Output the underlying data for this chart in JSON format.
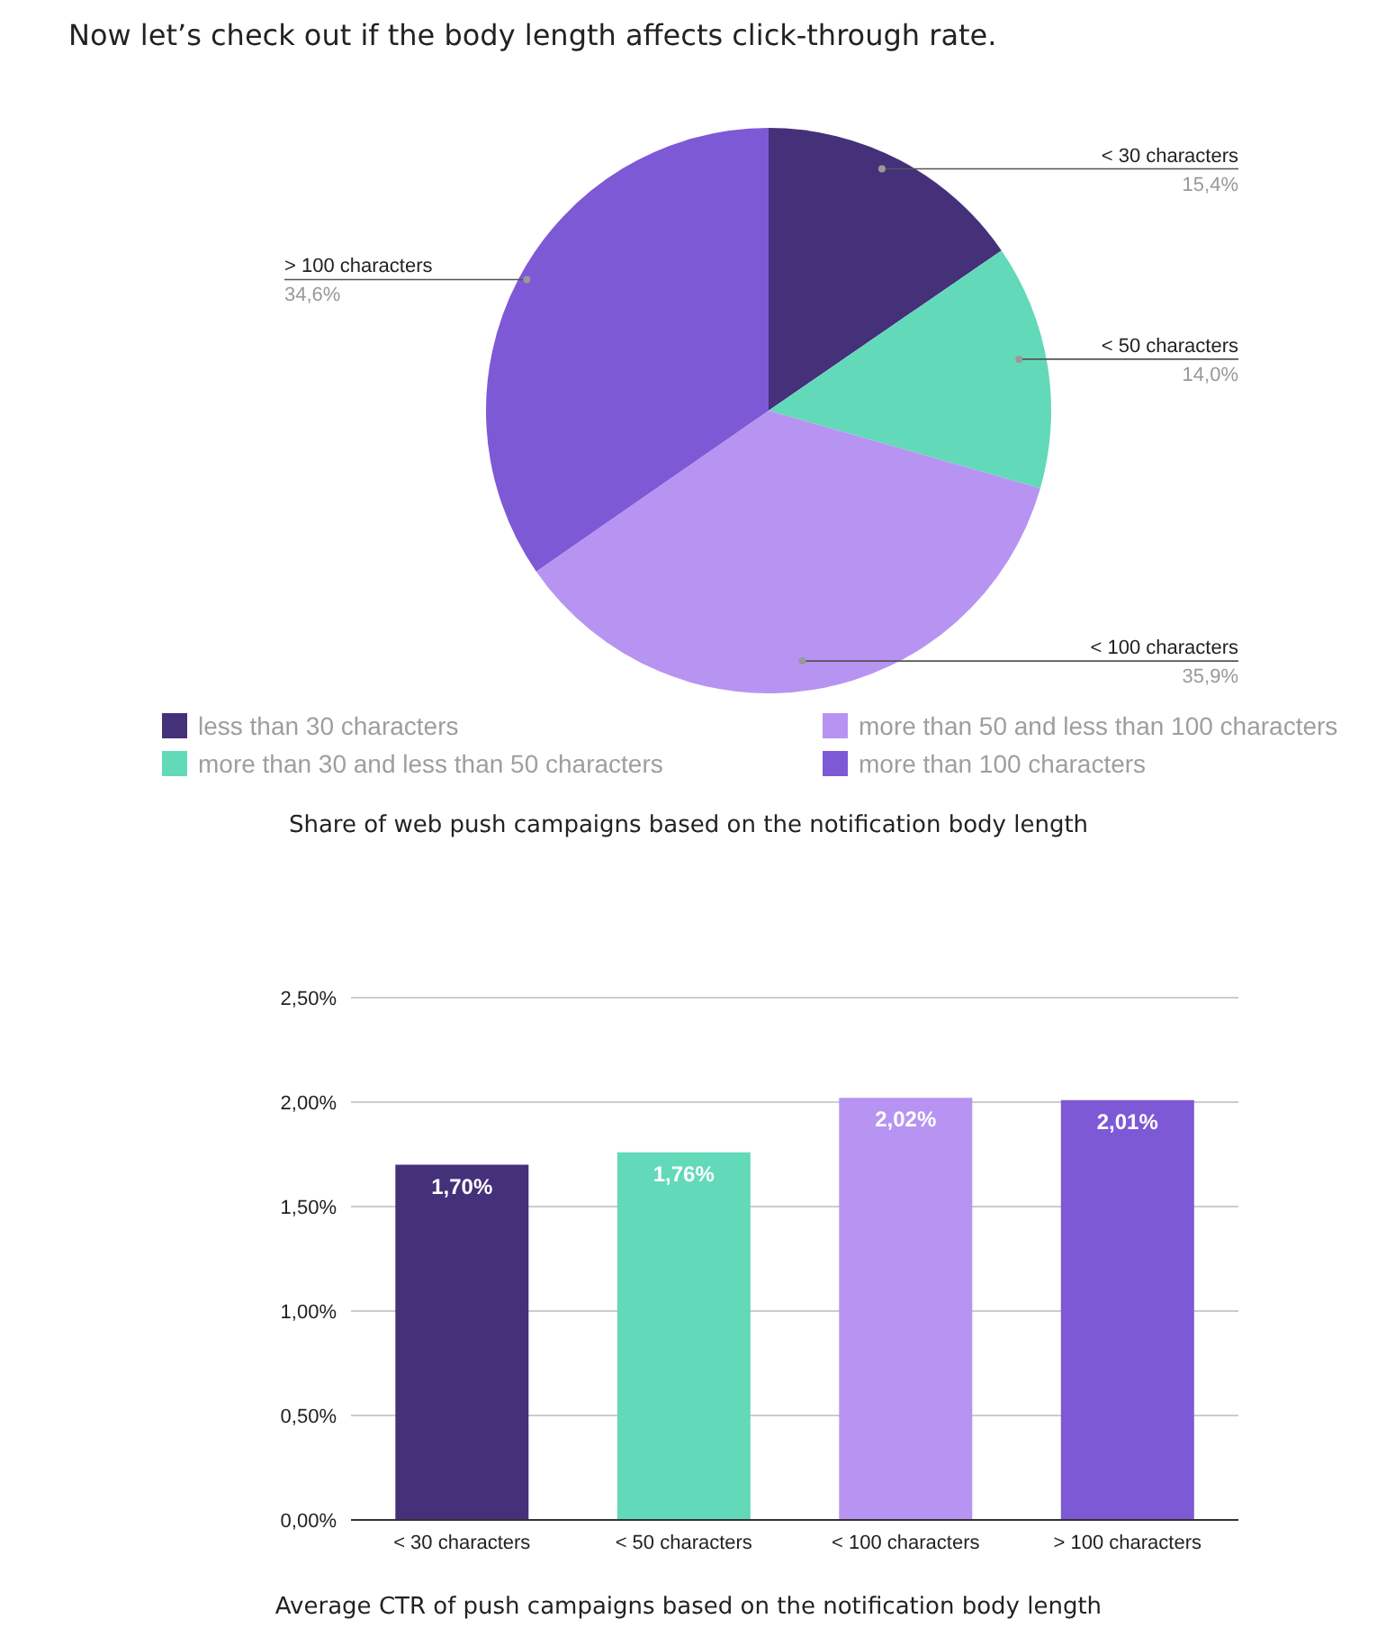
{
  "chart_data": [
    {
      "type": "pie",
      "title": "Now let’s check out if the body length affects click-through rate.",
      "categories": [
        "less than 30 characters",
        "more than 30 and less than 50 characters",
        "more than 50 and less than 100 characters",
        "more than 100 characters"
      ],
      "values": [
        15.4,
        14.0,
        35.9,
        34.6
      ],
      "colors": [
        "#45307a",
        "#62d9b9",
        "#b794f2",
        "#7e59d6"
      ],
      "value_labels": [
        "< 30 characters\n15,4%",
        "< 50 characters\n14,0%",
        "< 100 characters\n35,9%",
        "> 100 characters\n34,6%"
      ],
      "legend": "bottom",
      "annotations": [
        "Share of web push campaigns based on the notification body length"
      ]
    },
    {
      "type": "bar",
      "categories": [
        "< 30 characters",
        "< 50 characters",
        "< 100 characters",
        "> 100 characters"
      ],
      "values": [
        1.7,
        1.76,
        2.02,
        2.01
      ],
      "colors": [
        "#45307a",
        "#62d9b9",
        "#b794f2",
        "#7e59d6"
      ],
      "value_labels": [
        "1,70%",
        "1,76%",
        "2,02%",
        "2,01%"
      ],
      "ylim": [
        0,
        2.5
      ],
      "yticks": [
        {
          "value": 0,
          "label": "0,00%"
        },
        {
          "value": 0.5,
          "label": "0,50%"
        },
        {
          "value": 1,
          "label": "1,00%"
        },
        {
          "value": 1.5,
          "label": "1,50%"
        },
        {
          "value": 2,
          "label": "2,00%"
        },
        {
          "value": 2.5,
          "label": "2,50%"
        }
      ],
      "grid": "y",
      "annotations": [
        "Average CTR of push campaigns based on the notification body length"
      ]
    }
  ]
}
